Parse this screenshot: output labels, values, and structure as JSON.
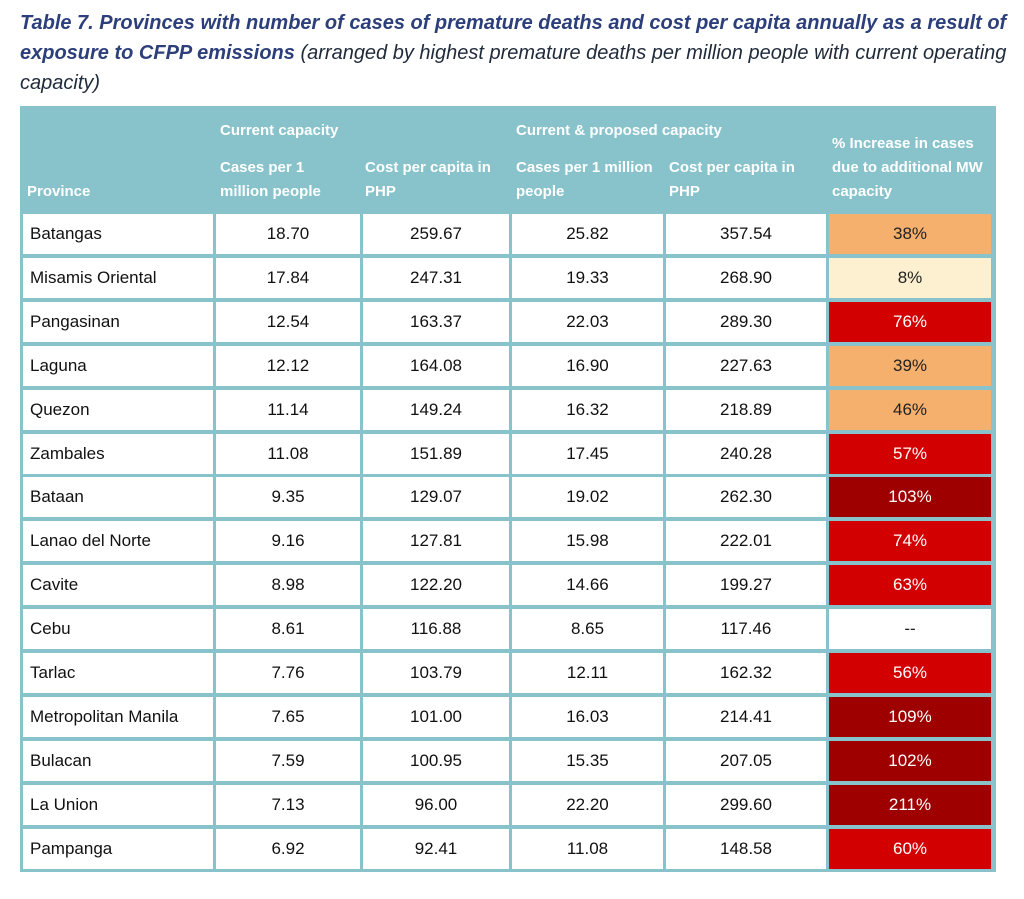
{
  "caption": {
    "bold": "Table 7. Provinces with number of cases of premature deaths and cost per capita annually as a result of exposure to CFPP emissions",
    "rest": " (arranged by highest premature deaths per million people with current operating capacity)"
  },
  "headers": {
    "current_capacity": "Current capacity",
    "current_proposed_capacity": "Current & proposed capacity",
    "province": "Province",
    "cases_current": "Cases per 1 million people",
    "cost_current": "Cost per capita in PHP",
    "cases_proposed": "Cases per 1 million people",
    "cost_proposed": "Cost per capita in PHP",
    "increase": "% Increase in cases due to additional MW capacity"
  },
  "colors": {
    "header_bg": "#88c3cb",
    "orange": "#f5b06e",
    "cream": "#fdf0d0",
    "red": "#d20000",
    "dark_red": "#9e0000",
    "white": "#ffffff"
  },
  "rows": [
    {
      "province": "Batangas",
      "cases_current": "18.70",
      "cost_current": "259.67",
      "cases_proposed": "25.82",
      "cost_proposed": "357.54",
      "increase": "38%",
      "level": "orange"
    },
    {
      "province": "Misamis Oriental",
      "cases_current": "17.84",
      "cost_current": "247.31",
      "cases_proposed": "19.33",
      "cost_proposed": "268.90",
      "increase": "8%",
      "level": "cream"
    },
    {
      "province": "Pangasinan",
      "cases_current": "12.54",
      "cost_current": "163.37",
      "cases_proposed": "22.03",
      "cost_proposed": "289.30",
      "increase": "76%",
      "level": "red"
    },
    {
      "province": "Laguna",
      "cases_current": "12.12",
      "cost_current": "164.08",
      "cases_proposed": "16.90",
      "cost_proposed": "227.63",
      "increase": "39%",
      "level": "orange"
    },
    {
      "province": "Quezon",
      "cases_current": "11.14",
      "cost_current": "149.24",
      "cases_proposed": "16.32",
      "cost_proposed": "218.89",
      "increase": "46%",
      "level": "orange"
    },
    {
      "province": "Zambales",
      "cases_current": "11.08",
      "cost_current": "151.89",
      "cases_proposed": "17.45",
      "cost_proposed": "240.28",
      "increase": "57%",
      "level": "red"
    },
    {
      "province": "Bataan",
      "cases_current": "9.35",
      "cost_current": "129.07",
      "cases_proposed": "19.02",
      "cost_proposed": "262.30",
      "increase": "103%",
      "level": "dark_red"
    },
    {
      "province": "Lanao del Norte",
      "cases_current": "9.16",
      "cost_current": "127.81",
      "cases_proposed": "15.98",
      "cost_proposed": "222.01",
      "increase": "74%",
      "level": "red"
    },
    {
      "province": "Cavite",
      "cases_current": "8.98",
      "cost_current": "122.20",
      "cases_proposed": "14.66",
      "cost_proposed": "199.27",
      "increase": "63%",
      "level": "red"
    },
    {
      "province": "Cebu",
      "cases_current": "8.61",
      "cost_current": "116.88",
      "cases_proposed": "8.65",
      "cost_proposed": "117.46",
      "increase": "--",
      "level": "white"
    },
    {
      "province": "Tarlac",
      "cases_current": "7.76",
      "cost_current": "103.79",
      "cases_proposed": "12.11",
      "cost_proposed": "162.32",
      "increase": "56%",
      "level": "red"
    },
    {
      "province": "Metropolitan Manila",
      "cases_current": "7.65",
      "cost_current": "101.00",
      "cases_proposed": "16.03",
      "cost_proposed": "214.41",
      "increase": "109%",
      "level": "dark_red"
    },
    {
      "province": "Bulacan",
      "cases_current": "7.59",
      "cost_current": "100.95",
      "cases_proposed": "15.35",
      "cost_proposed": "207.05",
      "increase": "102%",
      "level": "dark_red"
    },
    {
      "province": "La Union",
      "cases_current": "7.13",
      "cost_current": "96.00",
      "cases_proposed": "22.20",
      "cost_proposed": "299.60",
      "increase": "211%",
      "level": "dark_red"
    },
    {
      "province": "Pampanga",
      "cases_current": "6.92",
      "cost_current": "92.41",
      "cases_proposed": "11.08",
      "cost_proposed": "148.58",
      "increase": "60%",
      "level": "red"
    }
  ]
}
